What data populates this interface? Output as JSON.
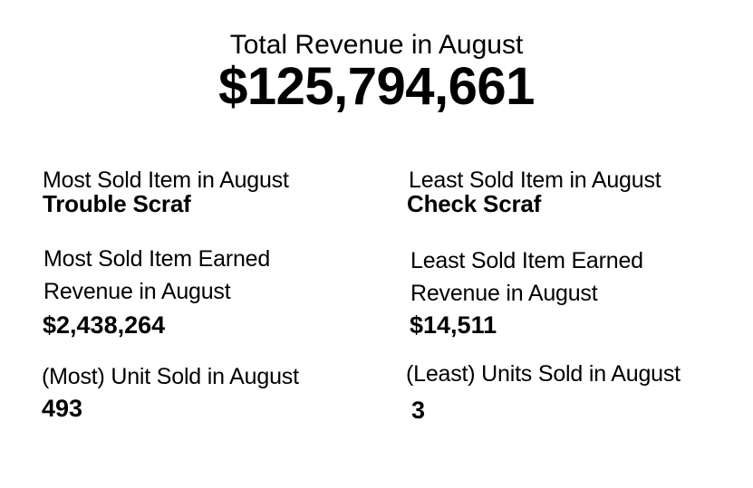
{
  "total": {
    "label": "Total Revenue in August",
    "value": "$125,794,661"
  },
  "most": {
    "item_label": "Most Sold Item in August",
    "item_value": "Trouble Scraf",
    "revenue_label": "Most Sold Item Earned Revenue in August",
    "revenue_value": "$2,438,264",
    "units_label": "(Most) Unit Sold in August",
    "units_value": "493"
  },
  "least": {
    "item_label": "Least Sold Item in August",
    "item_value": "Check Scraf",
    "revenue_label": "Least Sold Item Earned Revenue in August",
    "revenue_value": "$14,511",
    "units_label": "(Least) Units Sold in August",
    "units_value": "3"
  }
}
